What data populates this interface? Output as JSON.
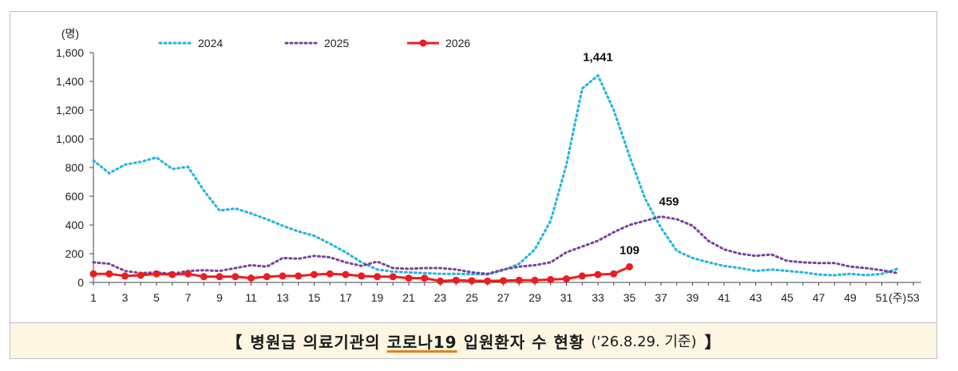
{
  "caption": {
    "open_bracket": "【",
    "title_before": "병원급 의료기관의 ",
    "title_highlight": "코로나19",
    "title_after": " 입원환자 수 현황",
    "date_note": "('26.8.29. 기준)",
    "close_bracket": "】"
  },
  "chart_data": {
    "type": "line",
    "title": "",
    "ylabel": "(명)",
    "xlabel": "(주)",
    "ylim": [
      0,
      1600
    ],
    "yticks": [
      0,
      200,
      400,
      600,
      800,
      1000,
      1200,
      1400,
      1600
    ],
    "ytick_labels": [
      "0",
      "200",
      "400",
      "600",
      "800",
      "1,000",
      "1,200",
      "1,400",
      "1,600"
    ],
    "xlim": [
      1,
      53
    ],
    "xticks": [
      1,
      3,
      5,
      7,
      9,
      11,
      13,
      15,
      17,
      19,
      21,
      23,
      25,
      27,
      29,
      31,
      33,
      35,
      37,
      39,
      41,
      43,
      45,
      47,
      49,
      51,
      53
    ],
    "grid": false,
    "legend_position": "top",
    "series": [
      {
        "name": "2024",
        "style": "dotted",
        "color": "#22b5dc",
        "x": [
          1,
          2,
          3,
          4,
          5,
          6,
          7,
          8,
          9,
          10,
          11,
          12,
          13,
          14,
          15,
          16,
          17,
          18,
          19,
          20,
          21,
          22,
          23,
          24,
          25,
          26,
          27,
          28,
          29,
          30,
          31,
          32,
          33,
          34,
          35,
          36,
          37,
          38,
          39,
          40,
          41,
          42,
          43,
          44,
          45,
          46,
          47,
          48,
          49,
          50,
          51,
          52
        ],
        "values": [
          850,
          760,
          820,
          840,
          870,
          790,
          805,
          640,
          500,
          515,
          480,
          440,
          395,
          355,
          325,
          270,
          210,
          140,
          90,
          75,
          70,
          65,
          60,
          60,
          58,
          55,
          85,
          130,
          230,
          430,
          820,
          1350,
          1441,
          1200,
          880,
          580,
          380,
          220,
          170,
          140,
          115,
          100,
          80,
          90,
          80,
          70,
          55,
          50,
          60,
          50,
          60,
          95
        ]
      },
      {
        "name": "2025",
        "style": "dotted",
        "color": "#7b3fa0",
        "x": [
          1,
          2,
          3,
          4,
          5,
          6,
          7,
          8,
          9,
          10,
          11,
          12,
          13,
          14,
          15,
          16,
          17,
          18,
          19,
          20,
          21,
          22,
          23,
          24,
          25,
          26,
          27,
          28,
          29,
          30,
          31,
          32,
          33,
          34,
          35,
          36,
          37,
          38,
          39,
          40,
          41,
          42,
          43,
          44,
          45,
          46,
          47,
          48,
          49,
          50,
          51,
          52
        ],
        "values": [
          140,
          130,
          80,
          65,
          70,
          60,
          80,
          85,
          80,
          100,
          120,
          110,
          170,
          165,
          185,
          175,
          140,
          115,
          145,
          100,
          95,
          100,
          100,
          90,
          70,
          60,
          90,
          110,
          120,
          140,
          210,
          250,
          290,
          350,
          400,
          430,
          459,
          440,
          395,
          290,
          230,
          200,
          185,
          195,
          150,
          140,
          135,
          135,
          110,
          100,
          85,
          65
        ]
      },
      {
        "name": "2026",
        "style": "solid-marker",
        "color": "#ee1c1c",
        "x": [
          1,
          2,
          3,
          4,
          5,
          6,
          7,
          8,
          9,
          10,
          11,
          12,
          13,
          14,
          15,
          16,
          17,
          18,
          19,
          20,
          21,
          22,
          23,
          24,
          25,
          26,
          27,
          28,
          29,
          30,
          31,
          32,
          33,
          34,
          35
        ],
        "values": [
          60,
          60,
          45,
          50,
          60,
          55,
          60,
          40,
          40,
          40,
          30,
          40,
          45,
          45,
          55,
          60,
          55,
          45,
          40,
          40,
          30,
          30,
          10,
          15,
          12,
          10,
          12,
          15,
          15,
          20,
          25,
          45,
          55,
          60,
          109
        ]
      }
    ],
    "annotations": [
      {
        "text": "1,441",
        "x": 33,
        "y": 1441
      },
      {
        "text": "459",
        "x": 37,
        "y": 459
      },
      {
        "text": "109",
        "x": 35,
        "y": 109
      }
    ]
  }
}
